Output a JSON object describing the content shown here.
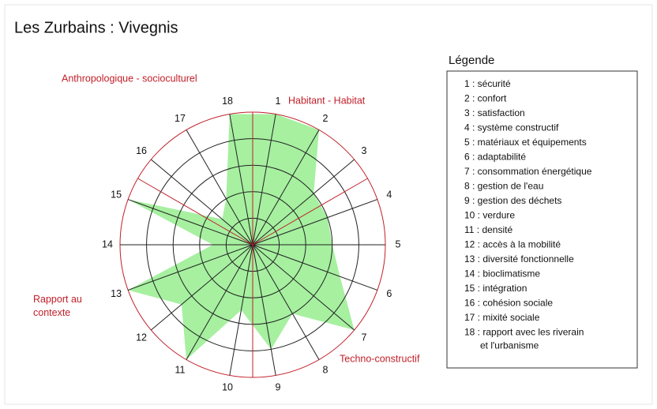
{
  "chart_data": {
    "type": "radar",
    "title": "Les Zurbains : Vivegnis",
    "categories": [
      "1",
      "2",
      "3",
      "4",
      "5",
      "6",
      "7",
      "8",
      "9",
      "10",
      "11",
      "12",
      "13",
      "14",
      "15",
      "16",
      "17",
      "18"
    ],
    "values": [
      5,
      5,
      3,
      3,
      3,
      3.5,
      5,
      3,
      4,
      2.5,
      5,
      3.5,
      5,
      1.5,
      5,
      1.5,
      2,
      5
    ],
    "color": "#a6f0a0",
    "rlim": [
      0,
      5
    ],
    "rticks": [
      1,
      2,
      3,
      4,
      5
    ],
    "groups": [
      "Habitant - Habitat",
      "Techno-constructif",
      "Rapport au contexte",
      "Anthropologique  - socioculturel"
    ],
    "legend_title": "Légende",
    "legend": [
      "1 : sécurité",
      "2 : confort",
      "3 : satisfaction",
      "4 : système constructif",
      "5 : matériaux et équipements",
      "6 : adaptabilité",
      "7 : consommation énergétique",
      "8 : gestion de l'eau",
      "9 : gestion des déchets",
      "10 : verdure",
      "11 : densité",
      "12 : accès à la mobilité",
      "13 : diversité fonctionnelle",
      "14 : bioclimatisme",
      "15 : intégration",
      "16 : cohésion sociale",
      "17 : mixité sociale",
      "18 : rapport avec les riverain et l'urbanisme"
    ]
  }
}
